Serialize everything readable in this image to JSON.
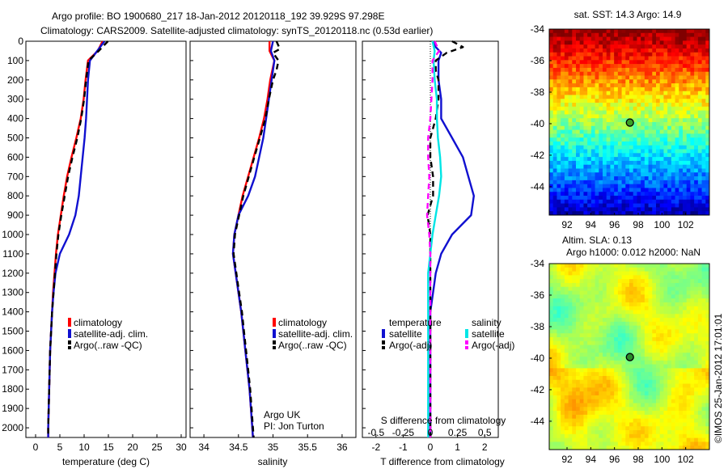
{
  "header": {
    "line1": "Argo profile: BO 1900680_217 18-Jan-2012 20120118_192 39.929S 97.298E",
    "line2": "Climatology: CARS2009. Satellite-adjusted climatology: synTS_20120118.nc (0.53d earlier)"
  },
  "sst_map": {
    "title": "sat. SST: 14.3 Argo: 14.9",
    "lon_ticks": [
      "92",
      "94",
      "96",
      "98",
      "100",
      "102"
    ],
    "lat_ticks": [
      "-34",
      "-36",
      "-38",
      "-40",
      "-42",
      "-44"
    ]
  },
  "sla_map": {
    "title1": "Altim. SLA: 0.13",
    "title2": "Argo h1000: 0.012 h2000: NaN",
    "lon_ticks": [
      "92",
      "94",
      "96",
      "98",
      "100",
      "102"
    ],
    "lat_ticks": [
      "-34",
      "-36",
      "-38",
      "-40",
      "-42",
      "-44"
    ]
  },
  "stamp": "©IMOS 25-Jan-2012 17:01:01",
  "colors": {
    "climatology": "#ff0000",
    "satellite": "#1010d0",
    "argo": "#000000",
    "s_satellite": "#00e5e5",
    "s_argo": "#ff00ff"
  },
  "chart_data": [
    {
      "type": "line",
      "xlabel": "temperature (deg C)",
      "ylabel": "",
      "xlim": [
        -2,
        31
      ],
      "ylim": [
        2050,
        0
      ],
      "x_ticks": [
        "0",
        "5",
        "10",
        "15",
        "20",
        "25",
        "30"
      ],
      "y_ticks": [
        "0",
        "100",
        "200",
        "300",
        "400",
        "500",
        "600",
        "700",
        "800",
        "900",
        "1000",
        "1100",
        "1200",
        "1300",
        "1400",
        "1500",
        "1600",
        "1700",
        "1800",
        "1900",
        "2000"
      ],
      "legend": [
        "climatology",
        "satellite-adj. clim.",
        "Argo(..raw -QC)"
      ],
      "series": [
        {
          "name": "climatology",
          "color": "#ff0000",
          "depth": [
            0,
            50,
            100,
            200,
            300,
            400,
            500,
            600,
            700,
            800,
            900,
            1000,
            1100,
            1200,
            1300,
            1400,
            1500,
            1600,
            1700,
            1800,
            1900,
            2000,
            2050
          ],
          "values": [
            13.8,
            12.8,
            10.8,
            10.3,
            9.9,
            9.3,
            8.4,
            7.4,
            6.5,
            5.8,
            5.2,
            4.6,
            4.2,
            3.9,
            3.6,
            3.4,
            3.2,
            3.0,
            2.9,
            2.8,
            2.7,
            2.6,
            2.6
          ]
        },
        {
          "name": "satellite-adj. clim.",
          "color": "#1010d0",
          "depth": [
            0,
            50,
            100,
            200,
            300,
            400,
            500,
            600,
            700,
            800,
            900,
            1000,
            1100,
            1200,
            1300,
            1400,
            1500,
            1600,
            1700,
            1800,
            1900,
            2000,
            2050
          ],
          "values": [
            14.2,
            12.7,
            11.2,
            10.8,
            10.6,
            10.4,
            10.1,
            9.7,
            9.3,
            8.9,
            8.2,
            6.9,
            5.0,
            4.1,
            3.7,
            3.4,
            3.2,
            3.0,
            2.9,
            2.8,
            2.7,
            2.6,
            2.6
          ]
        },
        {
          "name": "Argo(..raw -QC)",
          "color": "#000000",
          "dash": true,
          "depth": [
            0,
            50,
            100,
            200,
            300,
            400,
            500,
            600,
            700,
            800,
            900,
            1000,
            1100,
            1200,
            1300,
            1400,
            1500,
            1600,
            1700,
            1800,
            1900,
            2000,
            2050
          ],
          "values": [
            14.9,
            13.0,
            10.9,
            10.4,
            10.0,
            9.4,
            8.6,
            7.6,
            6.7,
            6.0,
            5.3,
            4.7,
            4.3,
            4.0,
            3.7,
            3.4,
            3.2,
            3.0,
            2.9,
            2.8,
            2.7,
            2.6,
            2.6
          ]
        }
      ]
    },
    {
      "type": "line",
      "xlabel": "salinity",
      "ylabel": "",
      "xlim": [
        33.8,
        36.2
      ],
      "ylim": [
        2050,
        0
      ],
      "x_ticks": [
        "34",
        "34.5",
        "35",
        "35.5",
        "36"
      ],
      "legend": [
        "climatology",
        "satellite-adj. clim.",
        "Argo(..raw -QC)"
      ],
      "annotations": [
        "Argo UK",
        "PI: Jon Turton"
      ],
      "series": [
        {
          "name": "climatology",
          "color": "#ff0000",
          "depth": [
            0,
            50,
            100,
            200,
            300,
            400,
            500,
            600,
            700,
            800,
            900,
            1000,
            1100,
            1200,
            1300,
            1400,
            1500,
            1600,
            1700,
            1800,
            1900,
            2000,
            2050
          ],
          "values": [
            34.95,
            34.95,
            35.02,
            34.96,
            34.92,
            34.87,
            34.8,
            34.72,
            34.64,
            34.56,
            34.5,
            34.44,
            34.42,
            34.46,
            34.5,
            34.54,
            34.57,
            34.6,
            34.63,
            34.66,
            34.68,
            34.7,
            34.71
          ]
        },
        {
          "name": "satellite-adj. clim.",
          "color": "#1010d0",
          "depth": [
            0,
            50,
            100,
            200,
            300,
            400,
            500,
            600,
            700,
            800,
            900,
            1000,
            1100,
            1200,
            1300,
            1400,
            1500,
            1600,
            1700,
            1800,
            1900,
            2000,
            2050
          ],
          "values": [
            35.0,
            34.97,
            35.02,
            34.98,
            34.94,
            34.9,
            34.86,
            34.8,
            34.74,
            34.64,
            34.5,
            34.44,
            34.42,
            34.46,
            34.5,
            34.54,
            34.57,
            34.6,
            34.63,
            34.66,
            34.68,
            34.7,
            34.71
          ]
        },
        {
          "name": "Argo(..raw -QC)",
          "color": "#000000",
          "dash": true,
          "depth": [
            0,
            40,
            60,
            100,
            150,
            200,
            300,
            400,
            500,
            600,
            700,
            800,
            900,
            1000,
            1100,
            1200,
            1300,
            1400,
            1500,
            1600,
            1700,
            1800,
            1900,
            2000,
            2050
          ],
          "values": [
            35.05,
            35.1,
            35.0,
            35.08,
            35.05,
            35.0,
            34.94,
            34.89,
            34.81,
            34.73,
            34.65,
            34.57,
            34.51,
            34.45,
            34.43,
            34.47,
            34.51,
            34.55,
            34.58,
            34.61,
            34.64,
            34.67,
            34.69,
            34.71,
            34.72
          ]
        }
      ]
    },
    {
      "type": "line",
      "xlabel": "T difference from climatology",
      "xlabel_top": "S difference from climatology",
      "xlim": [
        -2.5,
        2.5
      ],
      "ylim": [
        2050,
        0
      ],
      "x_ticks": [
        "-2",
        "-1",
        "0",
        "1",
        "2"
      ],
      "x_ticks_s": [
        "-0.5",
        "-0.25",
        "0",
        "0.25",
        "0.5"
      ],
      "legend_groups": [
        "temperature",
        "salinity"
      ],
      "legend": [
        "satellite",
        "Argo(-adj)",
        "satellite",
        "Argo(-adj)"
      ],
      "series": [
        {
          "name": "satellite",
          "group": "temperature",
          "color": "#1010d0",
          "depth": [
            0,
            30,
            60,
            100,
            200,
            300,
            400,
            500,
            600,
            700,
            800,
            900,
            1000,
            1100,
            1200,
            1300,
            1400,
            1500,
            1600,
            1700,
            1800,
            1900,
            2000,
            2050
          ],
          "values": [
            0.1,
            0.2,
            0.4,
            0.3,
            0.3,
            0.4,
            0.4,
            0.8,
            1.2,
            1.4,
            1.6,
            1.5,
            0.8,
            0.4,
            0.2,
            0.1,
            0.0,
            0.0,
            0.0,
            0.0,
            0.0,
            0.0,
            0.0,
            0.0
          ]
        },
        {
          "name": "Argo(-adj)",
          "group": "temperature",
          "color": "#000000",
          "dash": true,
          "depth": [
            0,
            30,
            40,
            60,
            100,
            150,
            200,
            300,
            400,
            500,
            600,
            700,
            800,
            900,
            1000,
            1100,
            1200,
            1300,
            1400,
            1500,
            1600,
            1700,
            1800,
            1900,
            2000,
            2050
          ],
          "values": [
            0.8,
            1.2,
            1.0,
            0.6,
            0.2,
            0.2,
            0.3,
            0.3,
            0.2,
            0.0,
            0.0,
            0.1,
            0.1,
            -0.1,
            0.0,
            0.0,
            0.0,
            0.0,
            0.0,
            0.0,
            0.0,
            0.0,
            0.0,
            0.0,
            0.0,
            0.0
          ]
        },
        {
          "name": "satellite",
          "group": "salinity",
          "color": "#00e5e5",
          "depth": [
            0,
            50,
            100,
            200,
            300,
            400,
            500,
            600,
            700,
            800,
            900,
            1000,
            1100,
            1200,
            1300,
            1400,
            1500,
            1600,
            1700,
            1800,
            1900,
            2000,
            2050
          ],
          "values": [
            0.02,
            0.04,
            0.03,
            0.04,
            0.06,
            0.06,
            0.07,
            0.09,
            0.1,
            0.08,
            0.05,
            0.02,
            0.0,
            -0.02,
            -0.02,
            -0.02,
            -0.02,
            -0.02,
            -0.02,
            -0.02,
            -0.02,
            -0.02,
            -0.02
          ]
        },
        {
          "name": "Argo(-adj)",
          "group": "salinity",
          "color": "#ff00ff",
          "dash": true,
          "depth": [
            0,
            50,
            100,
            200,
            300,
            400,
            500,
            600,
            700,
            800,
            900,
            1000,
            1100,
            1200,
            1300,
            1400,
            1500,
            1600,
            1700,
            1800,
            1900,
            2000,
            2050
          ],
          "values": [
            0.04,
            0.08,
            0.02,
            0.02,
            0.01,
            0.0,
            -0.02,
            -0.02,
            -0.01,
            -0.02,
            -0.03,
            -0.01,
            0.0,
            0.0,
            0.0,
            0.0,
            0.0,
            0.0,
            0.0,
            0.0,
            0.0,
            0.0,
            0.0
          ]
        }
      ]
    },
    {
      "type": "heatmap",
      "title": "sat. SST: 14.3 Argo: 14.9",
      "xlim": [
        90.5,
        104
      ],
      "ylim": [
        -45.8,
        -34
      ],
      "marker": {
        "lon": 97.3,
        "lat": -39.93
      }
    },
    {
      "type": "heatmap",
      "title": "Altim. SLA: 0.13",
      "xlim": [
        90.5,
        104
      ],
      "ylim": [
        -45.8,
        -34
      ],
      "marker": {
        "lon": 97.3,
        "lat": -39.93
      }
    }
  ]
}
